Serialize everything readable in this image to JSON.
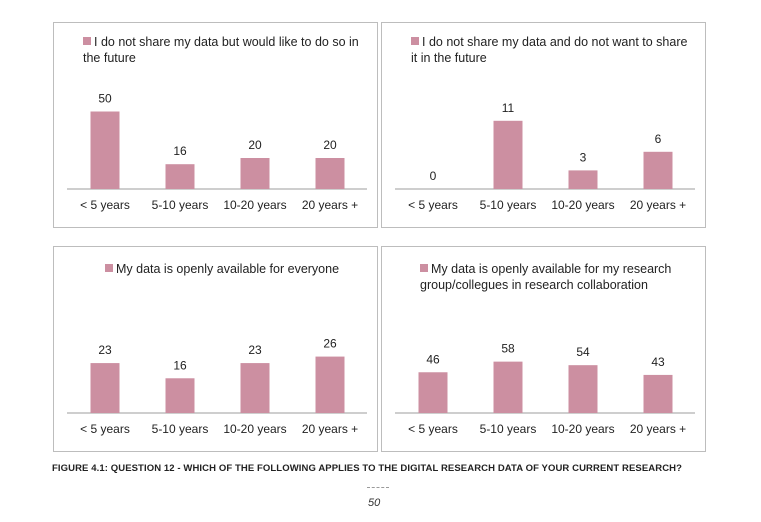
{
  "colors": {
    "bar": "#cc8fa1",
    "axis": "#9e9e9e",
    "border": "#bdbdbd"
  },
  "caption": "FIGURE 4.1: QUESTION 12 - WHICH OF THE FOLLOWING APPLIES TO THE DIGITAL RESEARCH DATA OF YOUR CURRENT RESEARCH?",
  "page_number": "50",
  "chart_data": [
    {
      "type": "bar",
      "categories": [
        "< 5 years",
        "5-10 years",
        "10-20 years",
        "20 years +"
      ],
      "series": [
        {
          "name": "I do not share my data but would like to do so in the future",
          "values": [
            50,
            16,
            20,
            20
          ]
        }
      ],
      "legend_lines": [
        "I do not share my data but would like to do so in",
        "the future"
      ],
      "ylim": [
        0,
        56
      ],
      "legend": "top-left",
      "grid": false
    },
    {
      "type": "bar",
      "categories": [
        "< 5 years",
        "5-10 years",
        "10-20 years",
        "20 years +"
      ],
      "series": [
        {
          "name": "I do not share my data and do not want to share it in the future",
          "values": [
            0,
            11,
            3,
            6
          ]
        }
      ],
      "legend_lines": [
        "I do not share my data and do not want to share",
        "it in the future"
      ],
      "ylim": [
        0,
        14
      ],
      "legend": "top-left",
      "grid": false
    },
    {
      "type": "bar",
      "categories": [
        "< 5 years",
        "5-10 years",
        "10-20 years",
        "20 years +"
      ],
      "series": [
        {
          "name": "My data is openly available for everyone",
          "values": [
            23,
            16,
            23,
            26
          ]
        }
      ],
      "legend_lines": [
        "My data is openly available for everyone"
      ],
      "ylim": [
        0,
        40
      ],
      "legend": "top-center",
      "grid": false
    },
    {
      "type": "bar",
      "categories": [
        "< 5 years",
        "5-10 years",
        "10-20 years",
        "20 years +"
      ],
      "series": [
        {
          "name": "My data is openly available for my research group/collegues in research collaboration",
          "values": [
            46,
            58,
            54,
            43
          ]
        }
      ],
      "legend_lines": [
        "My data is openly available for my research",
        "group/collegues in research collaboration"
      ],
      "ylim": [
        0,
        98
      ],
      "legend": "top-left",
      "grid": false
    }
  ]
}
